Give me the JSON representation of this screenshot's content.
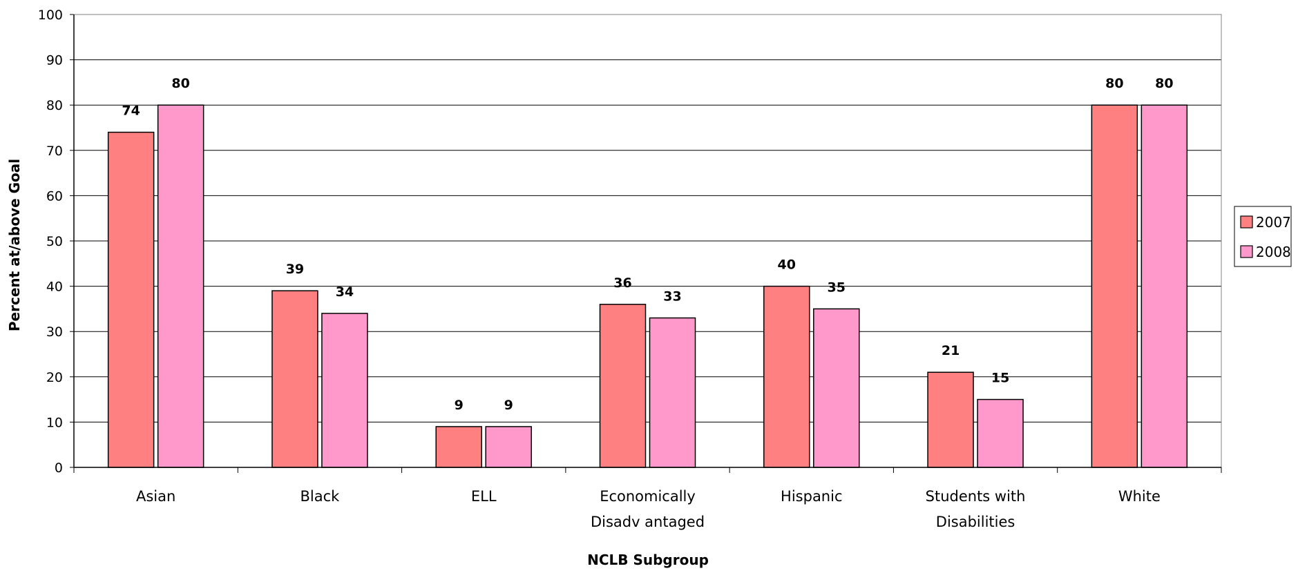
{
  "chart_data": {
    "type": "bar",
    "title": "",
    "xlabel": "NCLB Subgroup",
    "ylabel": "Percent at/above Goal",
    "ylim": [
      0,
      100
    ],
    "yticks": [
      "0",
      "10",
      "20",
      "30",
      "40",
      "50",
      "60",
      "70",
      "80",
      "90",
      "100"
    ],
    "grid": true,
    "legend_position": "right",
    "categories": [
      [
        "Asian"
      ],
      [
        "Black"
      ],
      [
        "ELL"
      ],
      [
        "Economically",
        "Disadv antaged"
      ],
      [
        "Hispanic"
      ],
      [
        "Students with",
        "Disabilities"
      ],
      [
        "White"
      ]
    ],
    "series": [
      {
        "name": "2007",
        "color": "#ff8080",
        "values": [
          74,
          39,
          9,
          36,
          40,
          21,
          80
        ]
      },
      {
        "name": "2008",
        "color": "#ff99cc",
        "values": [
          80,
          34,
          9,
          33,
          35,
          15,
          80
        ]
      }
    ]
  }
}
